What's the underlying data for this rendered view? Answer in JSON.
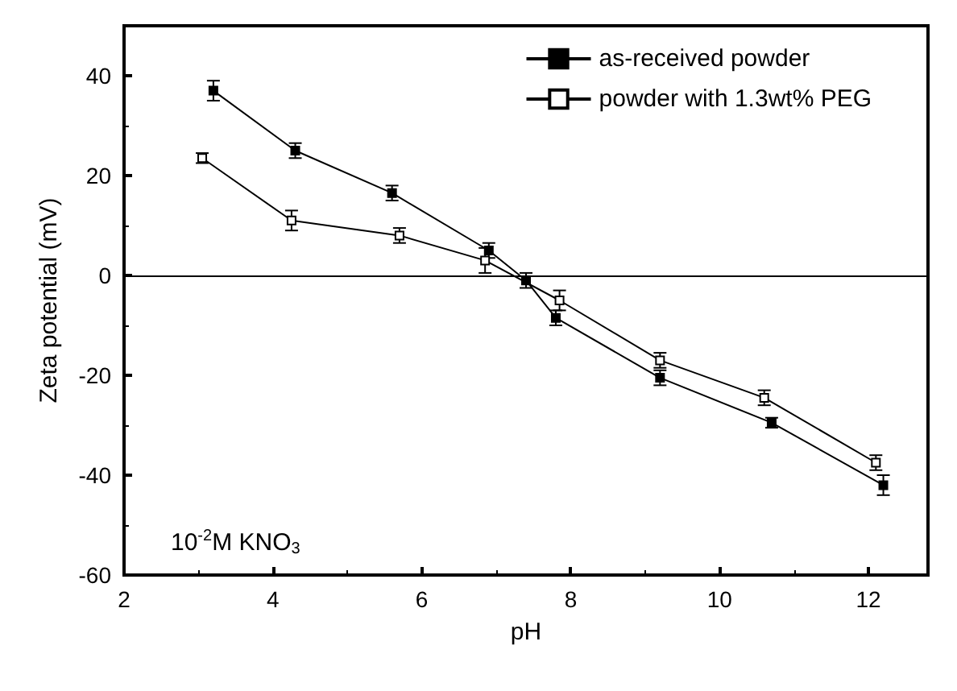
{
  "chart_data": {
    "type": "line",
    "xlabel": "pH",
    "ylabel": "Zeta potential (mV)",
    "xlim": [
      2,
      12.8
    ],
    "ylim": [
      -60,
      50
    ],
    "xticks": [
      2,
      4,
      6,
      8,
      10,
      12
    ],
    "yticks": [
      -60,
      -40,
      -20,
      0,
      20,
      40
    ],
    "grid": false,
    "legend": "top right",
    "marker": "square",
    "line_style": "solid",
    "series": [
      {
        "name": "as-received powder",
        "color": "#000000",
        "x": [
          3.2,
          4.3,
          5.6,
          6.9,
          7.4,
          7.8,
          9.2,
          10.7,
          12.2
        ],
        "values": [
          37,
          25,
          16.5,
          5,
          -1,
          -8.5,
          -20.5,
          -29.5,
          -42
        ],
        "errors": [
          2,
          1.5,
          1.5,
          1.5,
          1.5,
          1.5,
          1.5,
          1,
          2
        ]
      },
      {
        "name": "powder with 1.3wt% PEG",
        "color": "#000000",
        "x": [
          3.05,
          4.25,
          5.7,
          6.85,
          7.85,
          9.2,
          10.6,
          12.1
        ],
        "values": [
          23.5,
          11,
          8,
          3,
          -5,
          -17,
          -24.5,
          -37.5
        ],
        "errors": [
          1,
          2,
          1.5,
          2.5,
          2,
          1.5,
          1.5,
          1.5
        ]
      }
    ],
    "ref_lines": [
      {
        "axis": "y",
        "value": 0,
        "color": "#000000",
        "line_style": "solid"
      }
    ],
    "annotations": [
      "10$^{-2}$M KNO$_{3}$"
    ]
  }
}
